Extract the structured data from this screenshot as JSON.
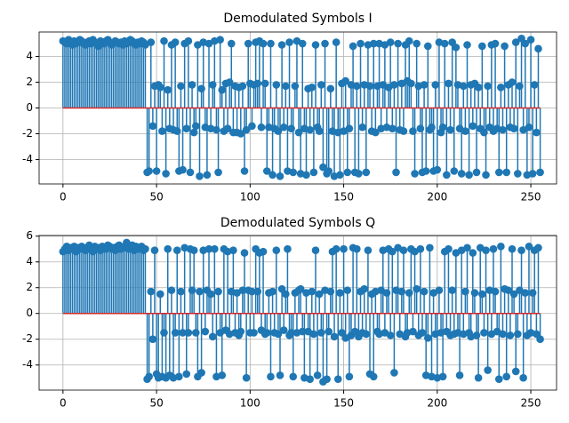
{
  "chart_data": [
    {
      "type": "stem",
      "title": "Demodulated Symbols I",
      "color": "#1f77b4",
      "baseline_color": "#d62728",
      "grid": true,
      "xlim": [
        -12.75,
        263.75
      ],
      "xticks": [
        0,
        50,
        100,
        150,
        200,
        250
      ],
      "ylim": [
        -5.9,
        5.9
      ],
      "yticks": [
        -4,
        -2,
        0,
        2,
        4
      ],
      "x": [
        0,
        1,
        2,
        3,
        4,
        5,
        6,
        7,
        8,
        9,
        10,
        11,
        12,
        13,
        14,
        15,
        16,
        17,
        18,
        19,
        20,
        21,
        22,
        23,
        24,
        25,
        26,
        27,
        28,
        29,
        30,
        31,
        32,
        33,
        34,
        35,
        36,
        37,
        38,
        39,
        40,
        41,
        42,
        43,
        44,
        45,
        46,
        47,
        48,
        49,
        50,
        51,
        52,
        53,
        54,
        55,
        56,
        57,
        58,
        59,
        60,
        61,
        62,
        63,
        64,
        65,
        66,
        67,
        68,
        69,
        70,
        71,
        72,
        73,
        74,
        75,
        76,
        77,
        78,
        79,
        80,
        81,
        82,
        83,
        84,
        85,
        86,
        87,
        88,
        89,
        90,
        91,
        92,
        93,
        94,
        95,
        96,
        97,
        98,
        99,
        100,
        101,
        102,
        103,
        104,
        105,
        106,
        107,
        108,
        109,
        110,
        111,
        112,
        113,
        114,
        115,
        116,
        117,
        118,
        119,
        120,
        121,
        122,
        123,
        124,
        125,
        126,
        127,
        128,
        129,
        130,
        131,
        132,
        133,
        134,
        135,
        136,
        137,
        138,
        139,
        140,
        141,
        142,
        143,
        144,
        145,
        146,
        147,
        148,
        149,
        150,
        151,
        152,
        153,
        154,
        155,
        156,
        157,
        158,
        159,
        160,
        161,
        162,
        163,
        164,
        165,
        166,
        167,
        168,
        169,
        170,
        171,
        172,
        173,
        174,
        175,
        176,
        177,
        178,
        179,
        180,
        181,
        182,
        183,
        184,
        185,
        186,
        187,
        188,
        189,
        190,
        191,
        192,
        193,
        194,
        195,
        196,
        197,
        198,
        199,
        200,
        201,
        202,
        203,
        204,
        205,
        206,
        207,
        208,
        209,
        210,
        211,
        212,
        213,
        214,
        215,
        216,
        217,
        218,
        219,
        220,
        221,
        222,
        223,
        224,
        225,
        226,
        227,
        228,
        229,
        230,
        231,
        232,
        233,
        234,
        235,
        236,
        237,
        238,
        239,
        240,
        241,
        242,
        243,
        244,
        245,
        246,
        247,
        248,
        249,
        250,
        251,
        252,
        253,
        254,
        255
      ],
      "values": [
        5.2,
        5.1,
        5.0,
        5.3,
        5.1,
        4.9,
        5.2,
        5.0,
        5.1,
        5.3,
        5.2,
        5.0,
        4.9,
        5.1,
        5.2,
        5.0,
        5.3,
        5.1,
        5.0,
        4.8,
        5.2,
        5.1,
        5.0,
        5.2,
        5.3,
        5.1,
        4.9,
        5.0,
        5.2,
        5.1,
        5.0,
        5.1,
        4.9,
        5.2,
        5.0,
        5.1,
        5.3,
        5.2,
        5.0,
        4.9,
        5.1,
        5.0,
        5.2,
        5.1,
        4.9,
        -5.0,
        -4.9,
        5.1,
        -1.4,
        1.7,
        -4.9,
        1.8,
        1.6,
        -1.8,
        5.2,
        -5.1,
        1.4,
        -1.6,
        4.9,
        -1.7,
        5.1,
        -1.8,
        -4.9,
        1.7,
        -4.8,
        5.0,
        -1.6,
        5.2,
        -5.0,
        1.8,
        -1.9,
        -1.4,
        4.9,
        -5.3,
        1.5,
        5.1,
        -1.5,
        -5.2,
        5.0,
        -1.6,
        1.8,
        5.2,
        -1.7,
        -5.0,
        5.3,
        1.4,
        -1.8,
        1.9,
        -1.6,
        2.0,
        5.0,
        -1.9,
        1.7,
        -1.9,
        1.6,
        -2.0,
        1.7,
        -4.9,
        -1.7,
        5.0,
        1.9,
        -1.4,
        1.8,
        5.1,
        1.9,
        5.2,
        -1.5,
        5.0,
        1.9,
        -4.9,
        -1.5,
        5.0,
        -5.2,
        -1.6,
        1.8,
        -1.8,
        -5.3,
        4.9,
        -1.5,
        1.7,
        -4.9,
        5.1,
        -1.6,
        -5.0,
        1.7,
        5.2,
        -1.9,
        -5.1,
        5.0,
        -1.6,
        -5.2,
        1.5,
        -1.7,
        1.6,
        -5.0,
        4.9,
        -1.5,
        -1.8,
        1.8,
        -4.6,
        5.0,
        -5.1,
        -4.9,
        1.5,
        -1.8,
        -5.3,
        5.1,
        -1.9,
        -5.2,
        1.9,
        -1.8,
        2.1,
        -5.0,
        -1.6,
        1.8,
        4.8,
        -5.0,
        1.7,
        -5.1,
        5.0,
        -1.5,
        1.8,
        -5.0,
        4.9,
        1.7,
        -1.8,
        5.0,
        -1.9,
        1.7,
        5.0,
        -1.6,
        1.8,
        4.9,
        -1.5,
        1.6,
        5.1,
        -1.6,
        1.8,
        -5.0,
        5.0,
        -1.7,
        1.9,
        -1.8,
        4.9,
        2.1,
        5.2,
        1.9,
        -1.8,
        -5.1,
        5.0,
        1.7,
        -1.6,
        -5.0,
        1.8,
        -4.9,
        4.8,
        -1.7,
        -1.5,
        -4.9,
        1.8,
        -4.8,
        5.1,
        -1.9,
        -1.5,
        5.0,
        -5.2,
        1.9,
        -1.7,
        5.1,
        -4.9,
        4.7,
        1.8,
        -1.6,
        -5.1,
        1.7,
        -1.8,
        4.9,
        -5.2,
        1.8,
        -1.4,
        1.9,
        -5.0,
        1.6,
        -1.6,
        4.8,
        -1.9,
        -5.2,
        1.7,
        -1.5,
        4.9,
        -1.8,
        5.0,
        -1.6,
        -5.0,
        1.6,
        -1.7,
        4.8,
        -5.0,
        1.8,
        -1.5,
        2.0,
        -1.6,
        5.1,
        -5.1,
        1.7,
        5.4,
        -1.7,
        5.0,
        -5.2,
        -1.5,
        5.3,
        -5.1,
        1.8,
        -1.9,
        4.6,
        -5.0
      ]
    },
    {
      "type": "stem",
      "title": "Demodulated Symbols Q",
      "color": "#1f77b4",
      "baseline_color": "#d62728",
      "grid": true,
      "xlim": [
        -12.75,
        263.75
      ],
      "xticks": [
        0,
        50,
        100,
        150,
        200,
        250
      ],
      "ylim": [
        -5.95,
        6.05
      ],
      "yticks": [
        -4,
        -2,
        0,
        2,
        4,
        6
      ],
      "x": [
        0,
        1,
        2,
        3,
        4,
        5,
        6,
        7,
        8,
        9,
        10,
        11,
        12,
        13,
        14,
        15,
        16,
        17,
        18,
        19,
        20,
        21,
        22,
        23,
        24,
        25,
        26,
        27,
        28,
        29,
        30,
        31,
        32,
        33,
        34,
        35,
        36,
        37,
        38,
        39,
        40,
        41,
        42,
        43,
        44,
        45,
        46,
        47,
        48,
        49,
        50,
        51,
        52,
        53,
        54,
        55,
        56,
        57,
        58,
        59,
        60,
        61,
        62,
        63,
        64,
        65,
        66,
        67,
        68,
        69,
        70,
        71,
        72,
        73,
        74,
        75,
        76,
        77,
        78,
        79,
        80,
        81,
        82,
        83,
        84,
        85,
        86,
        87,
        88,
        89,
        90,
        91,
        92,
        93,
        94,
        95,
        96,
        97,
        98,
        99,
        100,
        101,
        102,
        103,
        104,
        105,
        106,
        107,
        108,
        109,
        110,
        111,
        112,
        113,
        114,
        115,
        116,
        117,
        118,
        119,
        120,
        121,
        122,
        123,
        124,
        125,
        126,
        127,
        128,
        129,
        130,
        131,
        132,
        133,
        134,
        135,
        136,
        137,
        138,
        139,
        140,
        141,
        142,
        143,
        144,
        145,
        146,
        147,
        148,
        149,
        150,
        151,
        152,
        153,
        154,
        155,
        156,
        157,
        158,
        159,
        160,
        161,
        162,
        163,
        164,
        165,
        166,
        167,
        168,
        169,
        170,
        171,
        172,
        173,
        174,
        175,
        176,
        177,
        178,
        179,
        180,
        181,
        182,
        183,
        184,
        185,
        186,
        187,
        188,
        189,
        190,
        191,
        192,
        193,
        194,
        195,
        196,
        197,
        198,
        199,
        200,
        201,
        202,
        203,
        204,
        205,
        206,
        207,
        208,
        209,
        210,
        211,
        212,
        213,
        214,
        215,
        216,
        217,
        218,
        219,
        220,
        221,
        222,
        223,
        224,
        225,
        226,
        227,
        228,
        229,
        230,
        231,
        232,
        233,
        234,
        235,
        236,
        237,
        238,
        239,
        240,
        241,
        242,
        243,
        244,
        245,
        246,
        247,
        248,
        249,
        250,
        251,
        252,
        253,
        254,
        255
      ],
      "values": [
        4.8,
        5.0,
        5.2,
        4.9,
        5.1,
        5.0,
        5.2,
        4.8,
        5.1,
        5.0,
        5.2,
        5.1,
        4.9,
        5.0,
        5.3,
        5.1,
        4.8,
        5.2,
        5.0,
        5.1,
        4.9,
        5.2,
        5.1,
        5.0,
        5.3,
        5.2,
        5.0,
        5.1,
        4.9,
        5.2,
        5.3,
        5.0,
        5.1,
        5.2,
        5.5,
        5.0,
        5.1,
        5.3,
        4.9,
        5.2,
        5.0,
        5.1,
        5.2,
        4.9,
        5.0,
        -5.1,
        -4.9,
        1.7,
        -2.0,
        4.9,
        -4.7,
        -5.0,
        1.5,
        -4.9,
        -1.5,
        -5.0,
        5.0,
        -4.8,
        1.8,
        -5.0,
        -1.5,
        4.9,
        -4.9,
        1.7,
        -1.5,
        5.1,
        -4.7,
        -1.5,
        5.0,
        1.8,
        4.9,
        -1.5,
        -4.9,
        1.7,
        -4.6,
        4.9,
        -1.4,
        1.8,
        5.0,
        1.5,
        -1.8,
        5.0,
        -4.9,
        1.7,
        -1.5,
        -4.8,
        5.0,
        -1.3,
        4.8,
        -1.6,
        1.7,
        4.9,
        -1.5,
        1.6,
        -1.7,
        -1.4,
        1.8,
        4.7,
        -5.0,
        1.8,
        -1.5,
        1.7,
        -1.5,
        5.0,
        1.7,
        4.7,
        -1.3,
        4.8,
        -1.6,
        -1.5,
        1.6,
        -4.9,
        1.7,
        -1.5,
        4.9,
        -1.6,
        -4.8,
        1.9,
        -1.3,
        1.5,
        5.0,
        -1.7,
        -1.5,
        -4.9,
        1.6,
        -1.5,
        1.8,
        1.9,
        -1.4,
        -5.0,
        1.6,
        -1.4,
        -5.1,
        1.7,
        -1.6,
        4.9,
        -4.8,
        1.5,
        -1.5,
        -5.3,
        1.8,
        -5.1,
        -1.4,
        1.7,
        4.8,
        -1.8,
        5.0,
        -5.1,
        1.6,
        -1.5,
        5.0,
        -1.9,
        1.8,
        -4.9,
        -1.7,
        5.1,
        -1.4,
        5.0,
        -1.8,
        1.7,
        -1.5,
        1.9,
        -1.6,
        4.9,
        -4.7,
        1.5,
        -4.9,
        1.7,
        -1.4,
        -1.6,
        1.8,
        4.9,
        -1.5,
        1.6,
        5.0,
        -1.7,
        4.8,
        -4.6,
        1.8,
        5.1,
        -1.6,
        1.7,
        4.9,
        -1.8,
        -1.5,
        1.6,
        5.0,
        -1.4,
        4.8,
        1.9,
        -1.7,
        5.0,
        -1.5,
        1.7,
        -4.8,
        -1.9,
        5.1,
        -4.9,
        1.6,
        -1.6,
        -5.0,
        1.8,
        -1.5,
        -4.9,
        4.8,
        -1.4,
        5.0,
        -1.7,
        1.8,
        -1.6,
        4.7,
        -1.5,
        -4.8,
        4.9,
        -1.6,
        1.7,
        5.1,
        -1.5,
        -1.8,
        4.7,
        1.6,
        -1.7,
        -5.0,
        5.1,
        1.5,
        -1.5,
        4.9,
        -4.4,
        1.8,
        -1.6,
        5.0,
        1.7,
        -1.4,
        -5.1,
        5.2,
        -1.6,
        1.9,
        -4.9,
        1.8,
        -1.7,
        5.0,
        1.5,
        -4.5,
        -1.6,
        1.8,
        4.9,
        -5.0,
        1.6,
        -1.7,
        5.2,
        -1.5,
        1.6,
        4.9,
        -1.6,
        5.1,
        -2.0
      ]
    }
  ]
}
